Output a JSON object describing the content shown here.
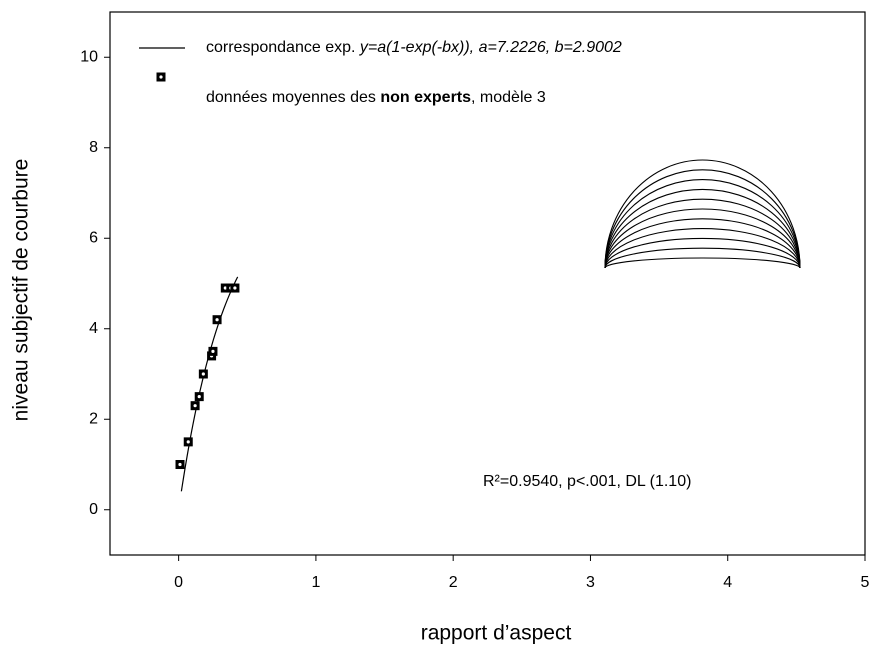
{
  "chart_data": {
    "type": "scatter",
    "x_label": "rapport d’aspect",
    "y_label": "niveau subjectif de courbure",
    "xlim": [
      -0.5,
      5
    ],
    "ylim": [
      -1,
      11
    ],
    "xticks": [
      0,
      1,
      2,
      3,
      4,
      5
    ],
    "yticks": [
      0,
      2,
      4,
      6,
      8,
      10
    ],
    "series": [
      {
        "name": [
          "données moyennes des ",
          "non experts",
          ", modèle 3"
        ],
        "color": "#000000",
        "x": [
          0.01,
          0.07,
          0.12,
          0.15,
          0.18,
          0.24,
          0.25,
          0.28,
          0.34,
          0.38,
          0.41
        ],
        "values": [
          1.0,
          1.5,
          2.3,
          2.5,
          3.0,
          3.4,
          3.5,
          4.2,
          4.9,
          4.9,
          4.9
        ]
      }
    ],
    "fit": {
      "name": [
        "correspondance exp. ",
        "y=a(1-exp(-bx)), a=7.2226, b=2.9002"
      ],
      "a": 7.2226,
      "b": 2.9002,
      "x_range": [
        0.02,
        0.43
      ]
    },
    "annotation": "R²=0.9540, p<.001, DL (1.10)"
  }
}
